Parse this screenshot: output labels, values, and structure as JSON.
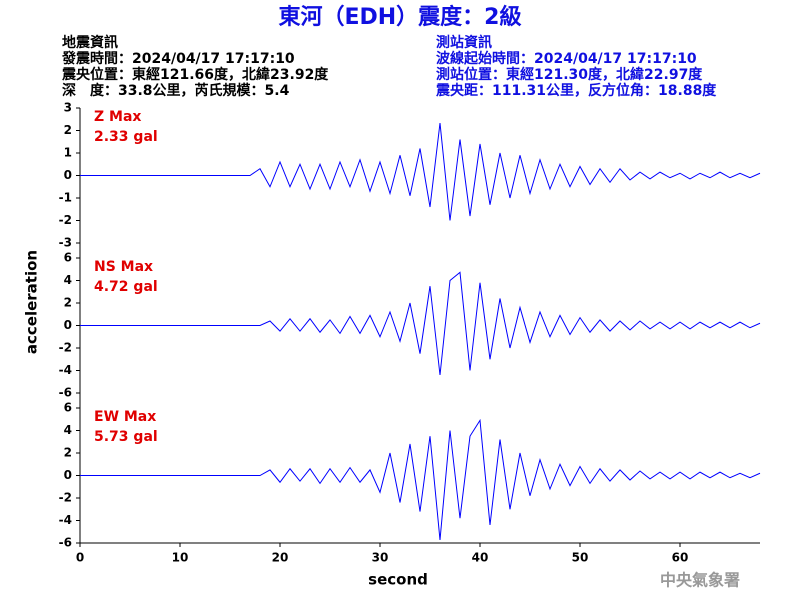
{
  "title": "東河（EDH）震度：2級",
  "info_left": [
    "地震資訊",
    "發震時間：2024/04/17 17:17:10",
    "震央位置：東經121.66度，北緯23.92度",
    "深　度：33.8公里，芮氏規模：5.4"
  ],
  "info_right": [
    "測站資訊",
    "波線起始時間：2024/04/17 17:17:10",
    "測站位置：東經121.30度，北緯22.97度",
    "震央距：111.31公里，反方位角：18.88度"
  ],
  "footer": "中央氣象署",
  "x_label": "second",
  "y_label": "acceleration",
  "chart_data": [
    {
      "type": "line",
      "annotations": [
        "Z Max",
        "2.33 gal"
      ],
      "x": [
        0,
        1,
        2,
        3,
        4,
        5,
        6,
        7,
        8,
        9,
        10,
        11,
        12,
        13,
        14,
        15,
        16,
        17,
        18,
        19,
        20,
        21,
        22,
        23,
        24,
        25,
        26,
        27,
        28,
        29,
        30,
        31,
        32,
        33,
        34,
        35,
        36,
        37,
        38,
        39,
        40,
        41,
        42,
        43,
        44,
        45,
        46,
        47,
        48,
        49,
        50,
        51,
        52,
        53,
        54,
        55,
        56,
        57,
        58,
        59,
        60,
        61,
        62,
        63,
        64,
        65,
        66,
        67,
        68
      ],
      "series": [
        {
          "color": "#0000ff",
          "values": [
            0,
            0,
            0,
            0,
            0,
            0,
            0,
            0,
            0,
            0,
            0,
            0,
            0,
            0,
            0,
            0,
            0,
            0,
            0.3,
            -0.5,
            0.6,
            -0.5,
            0.5,
            -0.6,
            0.5,
            -0.6,
            0.6,
            -0.5,
            0.7,
            -0.7,
            0.6,
            -0.8,
            0.9,
            -0.9,
            1.2,
            -1.4,
            2.33,
            -2.0,
            1.6,
            -1.8,
            1.4,
            -1.3,
            1.0,
            -1.0,
            0.9,
            -0.8,
            0.7,
            -0.6,
            0.5,
            -0.5,
            0.4,
            -0.4,
            0.3,
            -0.3,
            0.3,
            -0.2,
            0.15,
            -0.15,
            0.15,
            -0.1,
            0.1,
            -0.15,
            0.1,
            -0.1,
            0.15,
            -0.1,
            0.1,
            -0.1,
            0.1
          ]
        }
      ],
      "xlim": [
        0,
        68
      ],
      "ylim": [
        -3,
        3
      ],
      "yticks": [
        -3,
        -2,
        -1,
        0,
        1,
        2,
        3
      ]
    },
    {
      "type": "line",
      "annotations": [
        "NS Max",
        "4.72 gal"
      ],
      "x": [
        0,
        1,
        2,
        3,
        4,
        5,
        6,
        7,
        8,
        9,
        10,
        11,
        12,
        13,
        14,
        15,
        16,
        17,
        18,
        19,
        20,
        21,
        22,
        23,
        24,
        25,
        26,
        27,
        28,
        29,
        30,
        31,
        32,
        33,
        34,
        35,
        36,
        37,
        38,
        39,
        40,
        41,
        42,
        43,
        44,
        45,
        46,
        47,
        48,
        49,
        50,
        51,
        52,
        53,
        54,
        55,
        56,
        57,
        58,
        59,
        60,
        61,
        62,
        63,
        64,
        65,
        66,
        67,
        68
      ],
      "series": [
        {
          "color": "#0000ff",
          "values": [
            0,
            0,
            0,
            0,
            0,
            0,
            0,
            0,
            0,
            0,
            0,
            0,
            0,
            0,
            0,
            0,
            0,
            0,
            0,
            0.4,
            -0.5,
            0.6,
            -0.5,
            0.6,
            -0.6,
            0.5,
            -0.7,
            0.8,
            -0.7,
            0.9,
            -1.0,
            1.2,
            -1.4,
            2.0,
            -2.5,
            3.5,
            -4.4,
            4.0,
            4.72,
            -4.0,
            3.8,
            -3.0,
            2.4,
            -2.0,
            1.6,
            -1.5,
            1.2,
            -1.0,
            0.9,
            -0.8,
            0.7,
            -0.6,
            0.5,
            -0.5,
            0.4,
            -0.4,
            0.4,
            -0.3,
            0.3,
            -0.3,
            0.3,
            -0.3,
            0.3,
            -0.2,
            0.3,
            -0.2,
            0.3,
            -0.2,
            0.2
          ]
        }
      ],
      "xlim": [
        0,
        68
      ],
      "ylim": [
        -6,
        6
      ],
      "yticks": [
        -6,
        -4,
        -2,
        0,
        2,
        4,
        6
      ]
    },
    {
      "type": "line",
      "annotations": [
        "EW Max",
        "5.73 gal"
      ],
      "x": [
        0,
        1,
        2,
        3,
        4,
        5,
        6,
        7,
        8,
        9,
        10,
        11,
        12,
        13,
        14,
        15,
        16,
        17,
        18,
        19,
        20,
        21,
        22,
        23,
        24,
        25,
        26,
        27,
        28,
        29,
        30,
        31,
        32,
        33,
        34,
        35,
        36,
        37,
        38,
        39,
        40,
        41,
        42,
        43,
        44,
        45,
        46,
        47,
        48,
        49,
        50,
        51,
        52,
        53,
        54,
        55,
        56,
        57,
        58,
        59,
        60,
        61,
        62,
        63,
        64,
        65,
        66,
        67,
        68
      ],
      "series": [
        {
          "color": "#0000ff",
          "values": [
            0,
            0,
            0,
            0,
            0,
            0,
            0,
            0,
            0,
            0,
            0,
            0,
            0,
            0,
            0,
            0,
            0,
            0,
            0,
            0.5,
            -0.6,
            0.6,
            -0.5,
            0.6,
            -0.7,
            0.6,
            -0.6,
            0.7,
            -0.6,
            0.5,
            -1.5,
            2.0,
            -2.4,
            2.8,
            -3.2,
            3.5,
            -5.73,
            4.0,
            -3.8,
            3.5,
            4.9,
            -4.4,
            3.2,
            -3.0,
            2.0,
            -1.8,
            1.4,
            -1.2,
            1.0,
            -0.9,
            0.8,
            -0.7,
            0.6,
            -0.5,
            0.5,
            -0.4,
            0.4,
            -0.3,
            0.3,
            -0.3,
            0.3,
            -0.3,
            0.3,
            -0.2,
            0.3,
            -0.2,
            0.2,
            -0.2,
            0.2
          ]
        }
      ],
      "xlim": [
        0,
        68
      ],
      "ylim": [
        -6,
        6
      ],
      "yticks": [
        -6,
        -4,
        -2,
        0,
        2,
        4,
        6
      ],
      "xticks": [
        0,
        10,
        20,
        30,
        40,
        50,
        60
      ]
    }
  ]
}
